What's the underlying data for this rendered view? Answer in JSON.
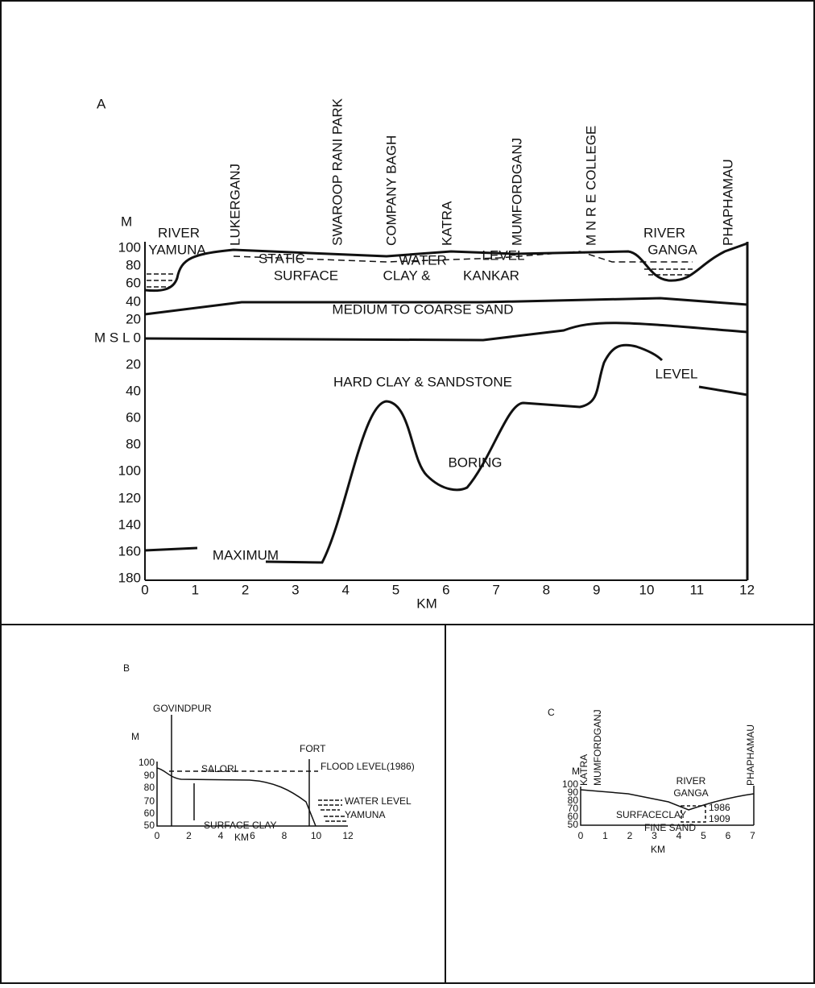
{
  "panel_a": {
    "label": "A",
    "axis_unit": "M",
    "km_label": "KM",
    "yticks": [
      "100",
      "80",
      "60",
      "40",
      "20",
      "M S L  0",
      "20",
      "40",
      "60",
      "80",
      "100",
      "120",
      "140",
      "160",
      "180"
    ],
    "xticks": [
      "0",
      "1",
      "2",
      "3",
      "4",
      "5",
      "6",
      "7",
      "8",
      "9",
      "10",
      "11",
      "12"
    ],
    "places": [
      "LUKERGANJ",
      "SWAROOP RANI PARK",
      "COMPANY BAGH",
      "KATRA",
      "MUMFORDGANJ",
      "M N R E  COLLEGE",
      "PHAPHAMAU"
    ],
    "river_left": [
      "RIVER",
      "YAMUNA"
    ],
    "river_right": [
      "RIVER",
      "GANGA"
    ],
    "layers": [
      "STATIC",
      "WATER",
      "LEVEL",
      "SURFACE",
      "CLAY &",
      "KANKAR",
      "MEDIUM TO  COARSE SAND",
      "HARD CLAY & SANDSTONE",
      "LEVEL",
      "BORING",
      "MAXIMUM"
    ]
  },
  "panel_b": {
    "label": "B",
    "axis_unit": "M",
    "km_label": "KM",
    "yticks": [
      "100",
      "90",
      "80",
      "70",
      "60",
      "50"
    ],
    "xticks": [
      "0",
      "2",
      "4",
      "6",
      "8",
      "10",
      "12"
    ],
    "labels": [
      "GOVINDPUR",
      "SALORI",
      "FORT",
      "FLOOD LEVEL(1986)",
      "WATER LEVEL",
      "YAMUNA",
      "SURFACE CLAY"
    ]
  },
  "panel_c": {
    "label": "C",
    "axis_unit": "M",
    "km_label": "KM",
    "yticks": [
      "100",
      "90",
      "80",
      "70",
      "60",
      "50"
    ],
    "xticks": [
      "0",
      "1",
      "2",
      "3",
      "4",
      "5",
      "6",
      "7"
    ],
    "places": [
      "KATRA",
      "MUMFORDGANJ",
      "PHAPHAMAU"
    ],
    "labels": [
      "RIVER",
      "GANGA",
      "SURFACECLAY",
      "FINE SAND",
      "1986",
      "1909"
    ]
  }
}
